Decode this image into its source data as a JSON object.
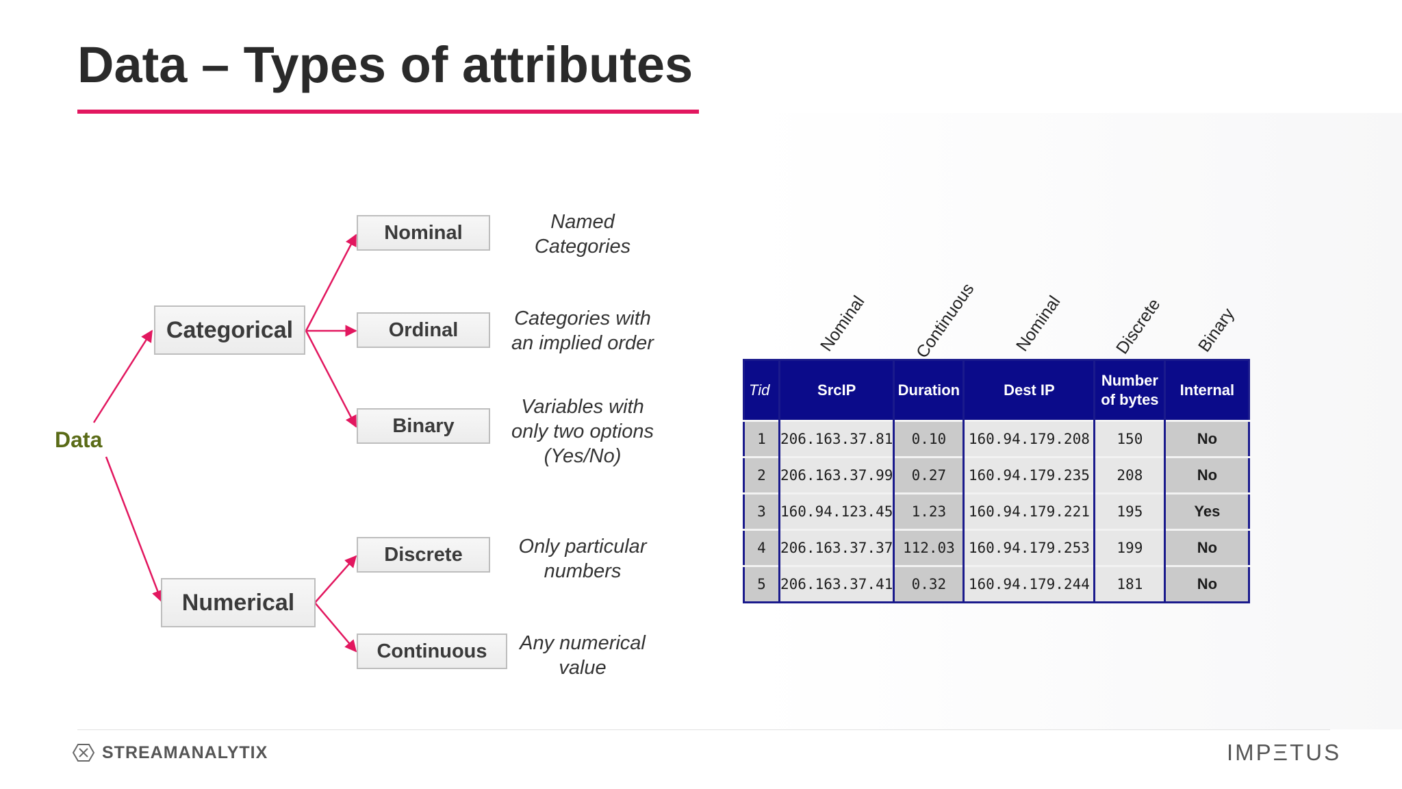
{
  "slide": {
    "title": "Data – Types of attributes",
    "accent_color": "#e2175f"
  },
  "tree": {
    "root": "Data",
    "categorical": "Categorical",
    "numerical": "Numerical",
    "nominal": "Nominal",
    "ordinal": "Ordinal",
    "binary": "Binary",
    "discrete": "Discrete",
    "continuous": "Continuous"
  },
  "descriptions": {
    "nominal": [
      "Named",
      "Categories"
    ],
    "ordinal": [
      "Categories with",
      "an implied order"
    ],
    "binary": [
      "Variables with",
      "only two options",
      "(Yes/No)"
    ],
    "discrete": [
      "Only particular",
      "numbers"
    ],
    "continuous": [
      "Any numerical",
      "value"
    ]
  },
  "column_types": [
    "Nominal",
    "Continuous",
    "Nominal",
    "Discrete",
    "Binary"
  ],
  "table": {
    "headers": [
      "Tid",
      "SrcIP",
      "Duration",
      "Dest IP",
      "Number of bytes",
      "Internal"
    ],
    "header_lines": [
      [
        "Tid"
      ],
      [
        "SrcIP"
      ],
      [
        "Duration"
      ],
      [
        "Dest IP"
      ],
      [
        "Number",
        "of bytes"
      ],
      [
        "Internal"
      ]
    ],
    "rows": [
      [
        "1",
        "206.163.37.81",
        "0.10",
        "160.94.179.208",
        "150",
        "No"
      ],
      [
        "2",
        "206.163.37.99",
        "0.27",
        "160.94.179.235",
        "208",
        "No"
      ],
      [
        "3",
        "160.94.123.45",
        "1.23",
        "160.94.179.221",
        "195",
        "Yes"
      ],
      [
        "4",
        "206.163.37.37",
        "112.03",
        "160.94.179.253",
        "199",
        "No"
      ],
      [
        "5",
        "206.163.37.41",
        "0.32",
        "160.94.179.244",
        "181",
        "No"
      ]
    ],
    "header_bg": "#0b0b8a"
  },
  "footer": {
    "left_brand": "STREAMANALYTIX",
    "right_brand": "IMPΞTUS"
  }
}
